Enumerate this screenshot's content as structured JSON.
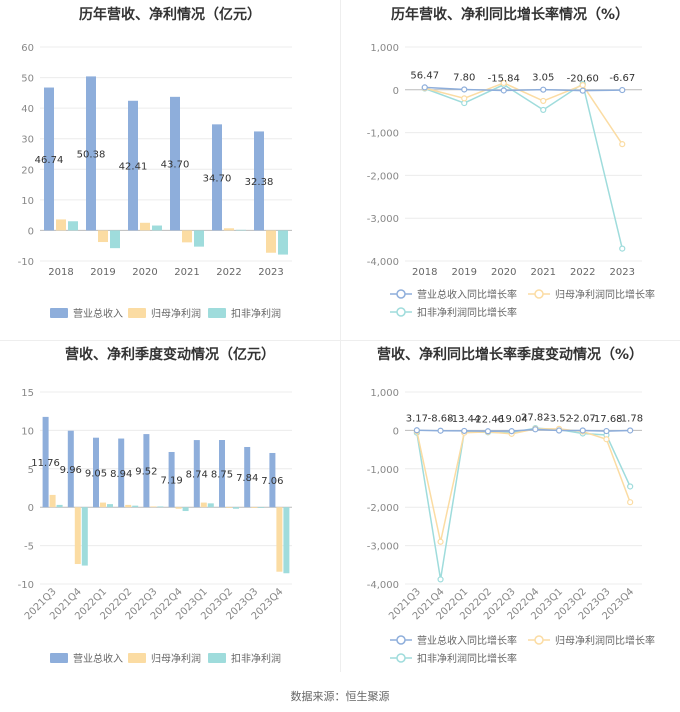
{
  "footer": "数据来源：恒生聚源",
  "chart_data": [
    {
      "type": "bar",
      "title": "历年营收、净利情况（亿元）",
      "categories": [
        "2018",
        "2019",
        "2020",
        "2021",
        "2022",
        "2023"
      ],
      "ylim": [
        -10,
        60
      ],
      "yticks": [
        -10,
        0,
        10,
        20,
        30,
        40,
        50,
        60
      ],
      "legend_position": "bottom",
      "series": [
        {
          "name": "营业总收入",
          "color": "#8eaedb",
          "values": [
            46.74,
            50.38,
            42.41,
            43.7,
            34.7,
            32.38
          ],
          "labels": [
            "46.74",
            "50.38",
            "42.41",
            "43.70",
            "34.70",
            "32.38"
          ]
        },
        {
          "name": "归母净利润",
          "color": "#fbdca3",
          "values": [
            3.6,
            -3.8,
            2.5,
            -3.9,
            0.7,
            -7.3
          ]
        },
        {
          "name": "扣非净利润",
          "color": "#9fdcdc",
          "values": [
            3.0,
            -5.8,
            1.6,
            -5.3,
            0.2,
            -7.9
          ]
        }
      ]
    },
    {
      "type": "line",
      "title": "历年营收、净利同比增长率情况（%）",
      "categories": [
        "2018",
        "2019",
        "2020",
        "2021",
        "2022",
        "2023"
      ],
      "ylim": [
        -4000,
        1000
      ],
      "yticks": [
        -4000,
        -3000,
        -2000,
        -1000,
        0,
        1000
      ],
      "ytick_labels": [
        "-4,000",
        "-3,000",
        "-2,000",
        "-1,000",
        "0",
        "1,000"
      ],
      "legend_position": "bottom",
      "series": [
        {
          "name": "营业总收入同比增长率",
          "color": "#8eaedb",
          "values": [
            56.47,
            7.8,
            -15.84,
            3.05,
            -20.6,
            -6.67
          ],
          "labels": [
            "56.47",
            "7.80",
            "-15.84",
            "3.05",
            "-20.60",
            "-6.67"
          ]
        },
        {
          "name": "归母净利润同比增长率",
          "color": "#fbdca3",
          "values": [
            40,
            -200,
            160,
            -260,
            110,
            -1270
          ]
        },
        {
          "name": "扣非净利润同比增长率",
          "color": "#9fdcdc",
          "values": [
            30,
            -310,
            120,
            -470,
            140,
            -3710
          ]
        }
      ]
    },
    {
      "type": "bar",
      "title": "营收、净利季度变动情况（亿元）",
      "categories": [
        "2021Q3",
        "2021Q4",
        "2022Q1",
        "2022Q2",
        "2022Q3",
        "2022Q4",
        "2023Q1",
        "2023Q2",
        "2023Q3",
        "2023Q4"
      ],
      "ylim": [
        -10,
        15
      ],
      "yticks": [
        -10,
        -5,
        0,
        5,
        10,
        15
      ],
      "legend_position": "bottom",
      "series": [
        {
          "name": "营业总收入",
          "color": "#8eaedb",
          "values": [
            11.76,
            9.96,
            9.05,
            8.94,
            9.52,
            7.19,
            8.74,
            8.75,
            7.84,
            7.06
          ],
          "labels": [
            "11.76",
            "9.96",
            "9.05",
            "8.94",
            "9.52",
            "7.19",
            "8.74",
            "8.75",
            "7.84",
            "7.06"
          ]
        },
        {
          "name": "归母净利润",
          "color": "#fbdca3",
          "values": [
            1.6,
            -7.4,
            0.6,
            0.3,
            0.1,
            -0.2,
            0.6,
            -0.1,
            -0.1,
            -8.4
          ]
        },
        {
          "name": "扣非净利润",
          "color": "#9fdcdc",
          "values": [
            0.3,
            -7.6,
            0.4,
            0.2,
            0.1,
            -0.5,
            0.5,
            -0.2,
            -0.1,
            -8.6
          ]
        }
      ]
    },
    {
      "type": "line",
      "title": "营收、净利同比增长率季度变动情况（%）",
      "categories": [
        "2021Q3",
        "2021Q4",
        "2022Q1",
        "2022Q2",
        "2022Q3",
        "2022Q4",
        "2023Q1",
        "2023Q2",
        "2023Q3",
        "2023Q4"
      ],
      "ylim": [
        -4000,
        1000
      ],
      "yticks": [
        -4000,
        -3000,
        -2000,
        -1000,
        0,
        1000
      ],
      "ytick_labels": [
        "-4,000",
        "-3,000",
        "-2,000",
        "-1,000",
        "0",
        "1,000"
      ],
      "legend_position": "bottom",
      "series": [
        {
          "name": "营业总收入同比增长率",
          "color": "#8eaedb",
          "values": [
            3.17,
            -8.68,
            -13.44,
            -22.46,
            -19.04,
            27.82,
            -3.52,
            -2.07,
            -17.68,
            -1.78
          ],
          "labels": [
            "3.17",
            "-8.68",
            "-13.44",
            "-22.46",
            "-19.04",
            "27.82",
            "-3.52",
            "-2.07",
            "-17.68",
            "-1.78"
          ]
        },
        {
          "name": "归母净利润同比增长率",
          "color": "#fbdca3",
          "values": [
            -20,
            -2900,
            -60,
            -40,
            -90,
            40,
            40,
            -30,
            -230,
            -1870
          ]
        },
        {
          "name": "扣非净利润同比增长率",
          "color": "#9fdcdc",
          "values": [
            -60,
            -3880,
            -40,
            -50,
            -60,
            60,
            20,
            -80,
            -120,
            -1460
          ]
        }
      ]
    }
  ]
}
